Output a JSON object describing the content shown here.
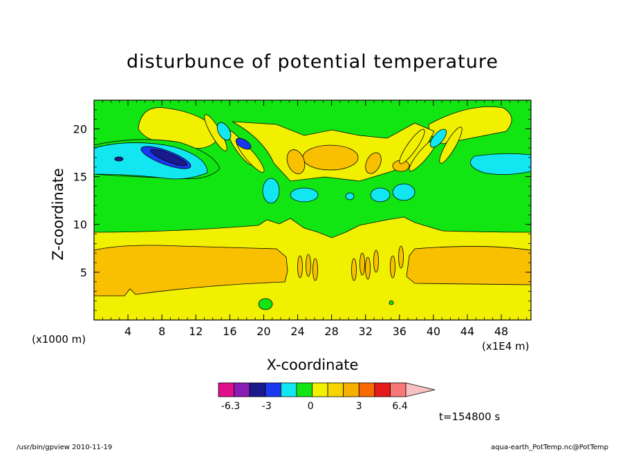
{
  "chart_data": {
    "type": "heatmap",
    "title": "disturbunce of potential temperature",
    "xlabel": "X-coordinate",
    "ylabel": "Z-coordinate",
    "x_unit": "(x1E4 m)",
    "y_unit": "(x1000 m)",
    "xlim": [
      0,
      51.5
    ],
    "ylim": [
      0,
      23
    ],
    "x_ticks": [
      4,
      8,
      12,
      16,
      20,
      24,
      28,
      32,
      36,
      40,
      44,
      48
    ],
    "y_ticks": [
      5,
      10,
      15,
      20
    ],
    "colorbar": {
      "labels": [
        "-6.3",
        "-3",
        "0",
        "3",
        "6.4"
      ],
      "colors": [
        "#e0108c",
        "#8a1eb4",
        "#1a1a8c",
        "#1a38f0",
        "#12e6f0",
        "#12e612",
        "#f0f000",
        "#f8d400",
        "#f8b000",
        "#f86a00",
        "#e61a1a",
        "#f87878",
        "#f8c0c0"
      ]
    },
    "time_label": "t=154800 s"
  },
  "footer": {
    "left": "/usr/bin/gpview   2010-11-19",
    "right": "aqua-earth_PotTemp.nc@PotTemp"
  },
  "colors": {
    "green": "#12e612",
    "yellow": "#f0f000",
    "orange": "#f8c000",
    "cyan": "#12e6f0",
    "blue": "#1a38f0",
    "navy": "#1a1a8c"
  }
}
